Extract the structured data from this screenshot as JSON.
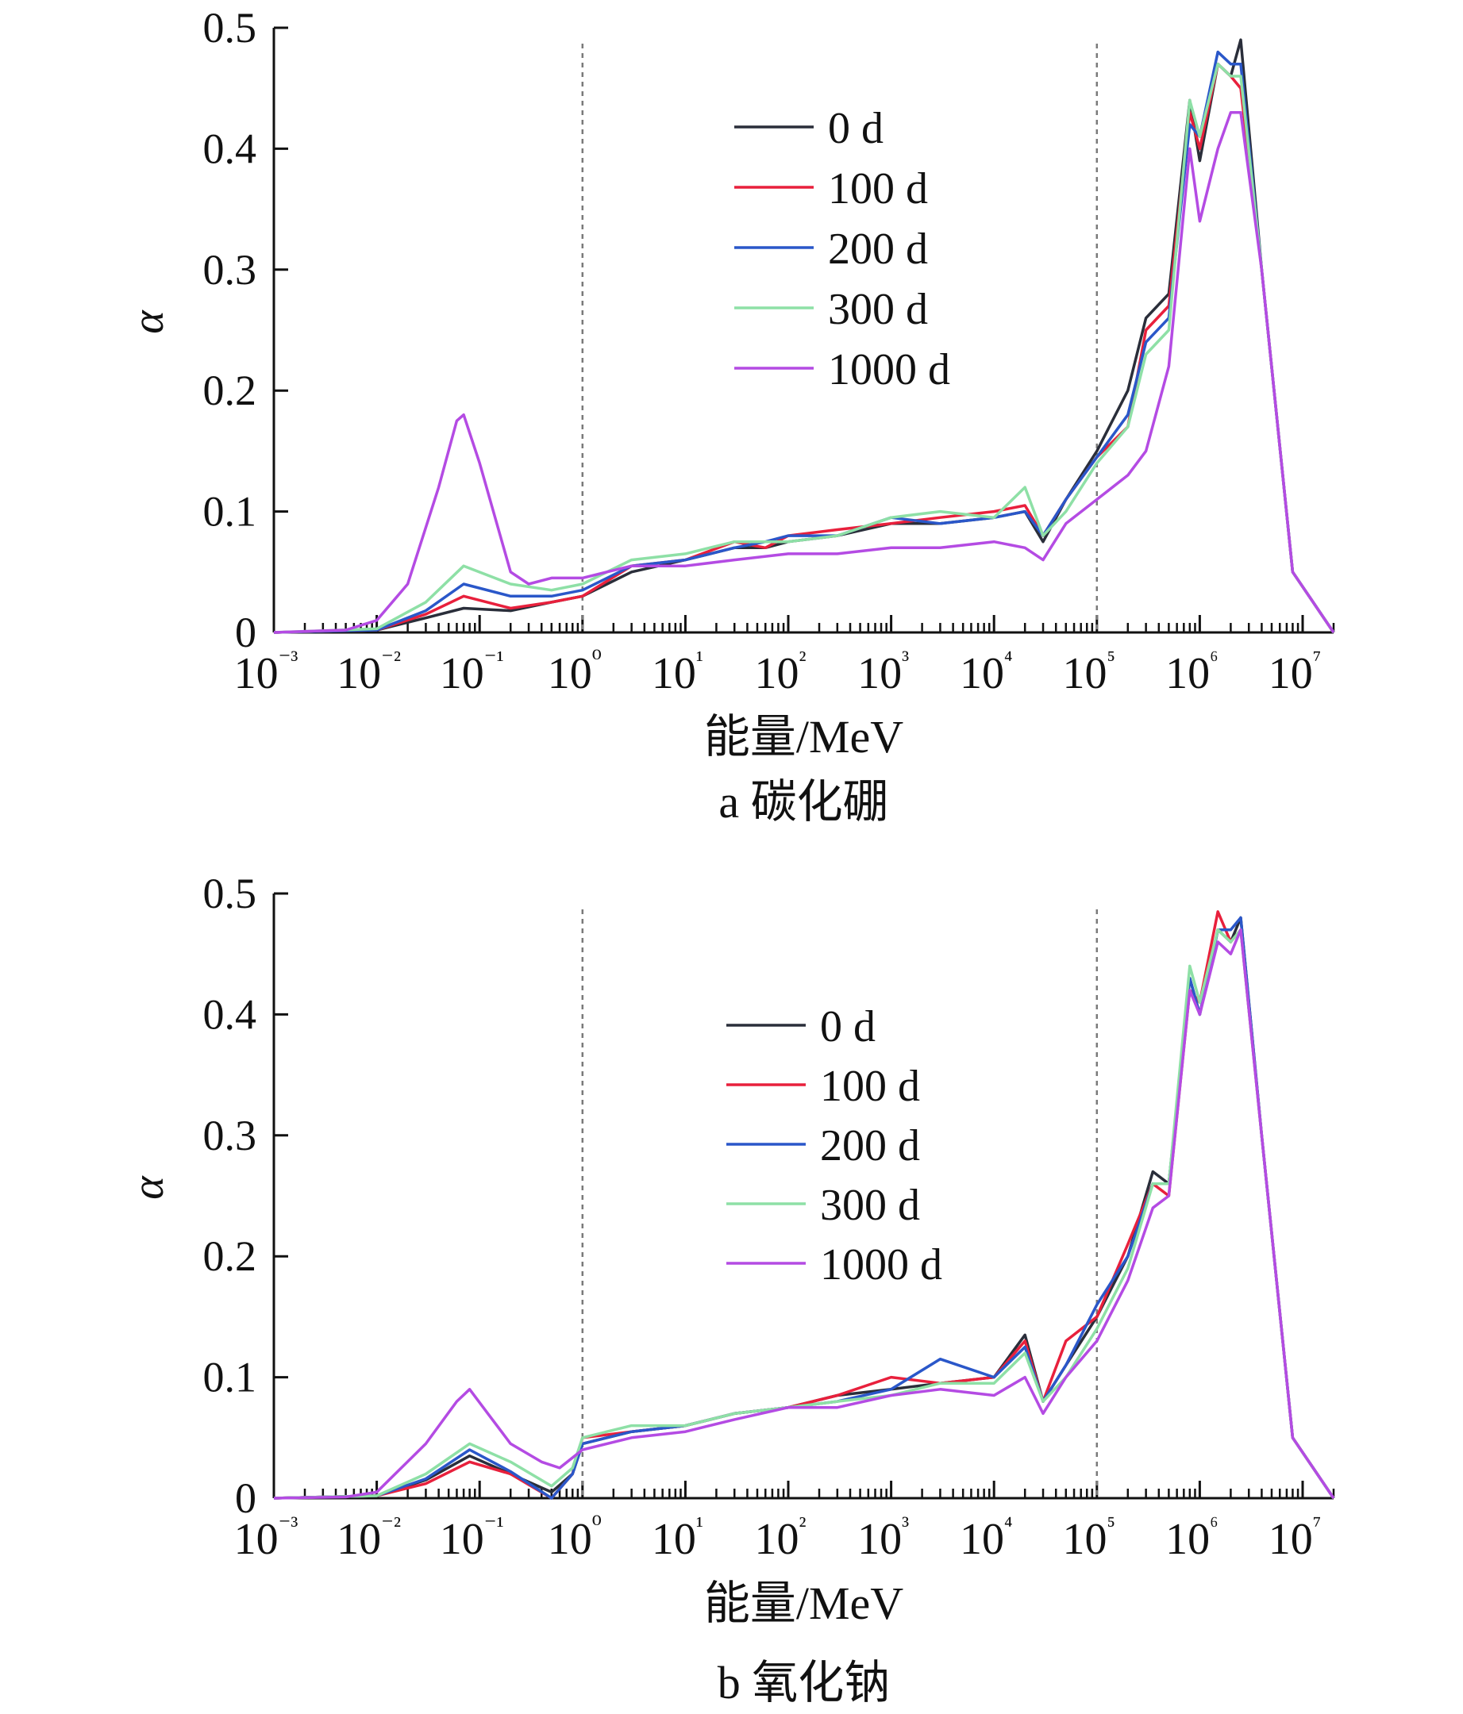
{
  "figure": {
    "series_names": [
      "0 d",
      "100 d",
      "200 d",
      "300 d",
      "1000 d"
    ],
    "series_colors": [
      "#2a2e3a",
      "#e8203c",
      "#2a57c9",
      "#8ee0a6",
      "#b44be3"
    ]
  },
  "chart_data": [
    {
      "type": "line",
      "title": "",
      "caption": "a  碳化硼",
      "xlabel": "能量/MeV",
      "ylabel": "α",
      "xscale": "log",
      "xlim": [
        0.001,
        20000000
      ],
      "ylim": [
        0,
        0.5
      ],
      "xticklabels": [
        "10⁻³",
        "10⁻²",
        "10⁻¹",
        "10⁰",
        "10¹",
        "10²",
        "10³",
        "10⁴",
        "10⁵",
        "10⁶",
        "10⁷"
      ],
      "yticklabels": [
        "0",
        "0.1",
        "0.2",
        "0.3",
        "0.4",
        "0.5"
      ],
      "reference_lines_x": [
        1,
        100000
      ],
      "legend_position": "upper-center",
      "grid": false,
      "series": [
        {
          "name": "0 d",
          "color": "#2a2e3a",
          "x": [
            0.001,
            0.01,
            0.03,
            0.07,
            0.2,
            0.5,
            1,
            3,
            10,
            30,
            60,
            100,
            300,
            1000,
            3000,
            10000,
            20000,
            30000,
            50000,
            100000,
            200000,
            300000,
            500000,
            800000,
            1000000,
            1500000,
            2000000,
            2500000,
            4000000,
            8000000,
            20000000
          ],
          "y": [
            0.0,
            0.002,
            0.012,
            0.02,
            0.018,
            0.025,
            0.03,
            0.05,
            0.06,
            0.07,
            0.07,
            0.075,
            0.08,
            0.09,
            0.09,
            0.095,
            0.1,
            0.075,
            0.11,
            0.15,
            0.2,
            0.26,
            0.28,
            0.44,
            0.39,
            0.47,
            0.46,
            0.49,
            0.3,
            0.05,
            0.0
          ]
        },
        {
          "name": "100 d",
          "color": "#e8203c",
          "x": [
            0.001,
            0.01,
            0.03,
            0.07,
            0.2,
            0.5,
            1,
            3,
            10,
            30,
            60,
            100,
            300,
            1000,
            3000,
            10000,
            20000,
            30000,
            50000,
            100000,
            200000,
            300000,
            500000,
            800000,
            1000000,
            1500000,
            2000000,
            2500000,
            4000000,
            8000000,
            20000000
          ],
          "y": [
            0.0,
            0.002,
            0.015,
            0.03,
            0.02,
            0.025,
            0.03,
            0.055,
            0.06,
            0.075,
            0.07,
            0.08,
            0.085,
            0.09,
            0.095,
            0.1,
            0.105,
            0.08,
            0.11,
            0.145,
            0.17,
            0.25,
            0.27,
            0.43,
            0.4,
            0.47,
            0.46,
            0.45,
            0.3,
            0.05,
            0.0
          ]
        },
        {
          "name": "200 d",
          "color": "#2a57c9",
          "x": [
            0.001,
            0.01,
            0.03,
            0.07,
            0.2,
            0.5,
            1,
            3,
            10,
            30,
            60,
            100,
            300,
            1000,
            3000,
            10000,
            20000,
            30000,
            50000,
            100000,
            200000,
            300000,
            500000,
            800000,
            1000000,
            1500000,
            2000000,
            2500000,
            4000000,
            8000000,
            20000000
          ],
          "y": [
            0.0,
            0.002,
            0.018,
            0.04,
            0.03,
            0.03,
            0.035,
            0.055,
            0.06,
            0.07,
            0.075,
            0.08,
            0.08,
            0.095,
            0.09,
            0.095,
            0.1,
            0.08,
            0.11,
            0.145,
            0.18,
            0.24,
            0.26,
            0.42,
            0.41,
            0.48,
            0.47,
            0.47,
            0.3,
            0.05,
            0.0
          ]
        },
        {
          "name": "300 d",
          "color": "#8ee0a6",
          "x": [
            0.001,
            0.01,
            0.03,
            0.07,
            0.2,
            0.5,
            1,
            3,
            10,
            30,
            60,
            100,
            300,
            1000,
            3000,
            10000,
            20000,
            30000,
            50000,
            100000,
            200000,
            300000,
            500000,
            800000,
            1000000,
            1500000,
            2000000,
            2500000,
            4000000,
            8000000,
            20000000
          ],
          "y": [
            0.0,
            0.003,
            0.025,
            0.055,
            0.04,
            0.035,
            0.04,
            0.06,
            0.065,
            0.075,
            0.075,
            0.075,
            0.08,
            0.095,
            0.1,
            0.095,
            0.12,
            0.08,
            0.1,
            0.14,
            0.17,
            0.23,
            0.25,
            0.44,
            0.41,
            0.47,
            0.46,
            0.46,
            0.3,
            0.05,
            0.0
          ]
        },
        {
          "name": "1000 d",
          "color": "#b44be3",
          "x": [
            0.001,
            0.005,
            0.01,
            0.02,
            0.04,
            0.06,
            0.07,
            0.1,
            0.2,
            0.3,
            0.5,
            1,
            3,
            10,
            30,
            100,
            300,
            1000,
            3000,
            10000,
            20000,
            30000,
            50000,
            100000,
            200000,
            300000,
            500000,
            800000,
            1000000,
            1500000,
            2000000,
            2500000,
            4000000,
            8000000,
            20000000
          ],
          "y": [
            0.0,
            0.002,
            0.01,
            0.04,
            0.12,
            0.175,
            0.18,
            0.14,
            0.05,
            0.04,
            0.045,
            0.045,
            0.055,
            0.055,
            0.06,
            0.065,
            0.065,
            0.07,
            0.07,
            0.075,
            0.07,
            0.06,
            0.09,
            0.11,
            0.13,
            0.15,
            0.22,
            0.4,
            0.34,
            0.4,
            0.43,
            0.43,
            0.3,
            0.05,
            0.0
          ]
        }
      ]
    },
    {
      "type": "line",
      "title": "",
      "caption": "b  氧化钠",
      "xlabel": "能量/MeV",
      "ylabel": "α",
      "xscale": "log",
      "xlim": [
        0.001,
        20000000
      ],
      "ylim": [
        0,
        0.5
      ],
      "xticklabels": [
        "10⁻³",
        "10⁻²",
        "10⁻¹",
        "10⁰",
        "10¹",
        "10²",
        "10³",
        "10⁴",
        "10⁵",
        "10⁶",
        "10⁷"
      ],
      "yticklabels": [
        "0",
        "0.1",
        "0.2",
        "0.3",
        "0.4",
        "0.5"
      ],
      "reference_lines_x": [
        1,
        100000
      ],
      "legend_position": "center",
      "grid": false,
      "series": [
        {
          "name": "0 d",
          "color": "#2a2e3a",
          "x": [
            0.001,
            0.01,
            0.03,
            0.08,
            0.2,
            0.5,
            0.8,
            1,
            3,
            10,
            30,
            100,
            300,
            1000,
            3000,
            10000,
            20000,
            30000,
            50000,
            100000,
            200000,
            350000,
            500000,
            800000,
            1000000,
            1500000,
            2000000,
            2500000,
            4000000,
            8000000,
            20000000
          ],
          "y": [
            0.0,
            0.002,
            0.015,
            0.035,
            0.02,
            0.005,
            0.02,
            0.045,
            0.055,
            0.06,
            0.07,
            0.075,
            0.085,
            0.09,
            0.095,
            0.1,
            0.135,
            0.08,
            0.11,
            0.15,
            0.2,
            0.27,
            0.26,
            0.43,
            0.4,
            0.47,
            0.46,
            0.48,
            0.3,
            0.05,
            0.0
          ]
        },
        {
          "name": "100 d",
          "color": "#e8203c",
          "x": [
            0.001,
            0.01,
            0.03,
            0.08,
            0.2,
            0.5,
            0.8,
            1,
            3,
            10,
            30,
            100,
            300,
            1000,
            3000,
            10000,
            20000,
            30000,
            50000,
            100000,
            200000,
            350000,
            500000,
            800000,
            1000000,
            1500000,
            2000000,
            2500000,
            4000000,
            8000000,
            20000000
          ],
          "y": [
            0.0,
            0.002,
            0.012,
            0.03,
            0.02,
            0.0,
            0.02,
            0.05,
            0.055,
            0.06,
            0.07,
            0.075,
            0.085,
            0.1,
            0.095,
            0.1,
            0.13,
            0.08,
            0.13,
            0.15,
            0.21,
            0.26,
            0.25,
            0.42,
            0.41,
            0.485,
            0.46,
            0.47,
            0.3,
            0.05,
            0.0
          ]
        },
        {
          "name": "200 d",
          "color": "#2a57c9",
          "x": [
            0.001,
            0.01,
            0.03,
            0.08,
            0.2,
            0.5,
            0.8,
            1,
            3,
            10,
            30,
            100,
            300,
            1000,
            3000,
            10000,
            20000,
            30000,
            50000,
            100000,
            200000,
            350000,
            500000,
            800000,
            1000000,
            1500000,
            2000000,
            2500000,
            4000000,
            8000000,
            20000000
          ],
          "y": [
            0.0,
            0.002,
            0.016,
            0.04,
            0.022,
            0.0,
            0.02,
            0.045,
            0.055,
            0.06,
            0.07,
            0.075,
            0.08,
            0.09,
            0.115,
            0.1,
            0.125,
            0.08,
            0.11,
            0.16,
            0.2,
            0.26,
            0.26,
            0.43,
            0.4,
            0.47,
            0.47,
            0.48,
            0.3,
            0.05,
            0.0
          ]
        },
        {
          "name": "300 d",
          "color": "#8ee0a6",
          "x": [
            0.001,
            0.01,
            0.03,
            0.08,
            0.2,
            0.5,
            0.8,
            1,
            3,
            10,
            30,
            100,
            300,
            1000,
            3000,
            10000,
            20000,
            30000,
            50000,
            100000,
            200000,
            350000,
            500000,
            800000,
            1000000,
            1500000,
            2000000,
            2500000,
            4000000,
            8000000,
            20000000
          ],
          "y": [
            0.0,
            0.002,
            0.02,
            0.045,
            0.03,
            0.01,
            0.025,
            0.05,
            0.06,
            0.06,
            0.07,
            0.075,
            0.08,
            0.085,
            0.095,
            0.095,
            0.12,
            0.08,
            0.1,
            0.14,
            0.19,
            0.26,
            0.26,
            0.44,
            0.41,
            0.47,
            0.46,
            0.47,
            0.3,
            0.05,
            0.0
          ]
        },
        {
          "name": "1000 d",
          "color": "#b44be3",
          "x": [
            0.001,
            0.005,
            0.01,
            0.03,
            0.06,
            0.08,
            0.12,
            0.2,
            0.4,
            0.6,
            1,
            3,
            10,
            30,
            100,
            300,
            1000,
            3000,
            10000,
            20000,
            30000,
            50000,
            100000,
            200000,
            350000,
            500000,
            800000,
            1000000,
            1500000,
            2000000,
            2500000,
            4000000,
            8000000,
            20000000
          ],
          "y": [
            0.0,
            0.001,
            0.005,
            0.045,
            0.08,
            0.09,
            0.07,
            0.045,
            0.03,
            0.025,
            0.04,
            0.05,
            0.055,
            0.065,
            0.075,
            0.075,
            0.085,
            0.09,
            0.085,
            0.1,
            0.07,
            0.1,
            0.13,
            0.18,
            0.24,
            0.25,
            0.42,
            0.4,
            0.46,
            0.45,
            0.47,
            0.3,
            0.05,
            0.0
          ]
        }
      ]
    }
  ]
}
